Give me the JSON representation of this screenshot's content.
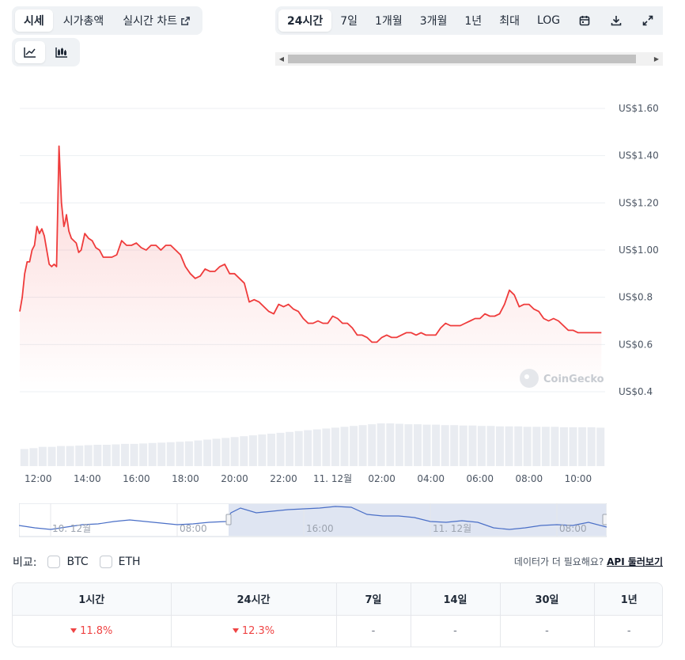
{
  "tabs": [
    {
      "label": "시세",
      "active": true
    },
    {
      "label": "시가총액",
      "active": false
    },
    {
      "label": "실시간 차트",
      "active": false,
      "external": true
    }
  ],
  "chart_types": [
    {
      "icon": "line-chart-icon",
      "active": true
    },
    {
      "icon": "candlestick-icon",
      "active": false
    }
  ],
  "ranges": [
    {
      "label": "24시간",
      "active": true
    },
    {
      "label": "7일",
      "active": false
    },
    {
      "label": "1개월",
      "active": false
    },
    {
      "label": "3개월",
      "active": false
    },
    {
      "label": "1년",
      "active": false
    },
    {
      "label": "최대",
      "active": false
    },
    {
      "label": "LOG",
      "active": false
    }
  ],
  "range_icons": [
    "calendar-icon",
    "download-icon",
    "expand-icon"
  ],
  "watermark": "CoinGecko",
  "chart_data": {
    "type": "line",
    "title": "",
    "xlabel": "",
    "ylabel": "",
    "ylim": [
      0.4,
      1.6
    ],
    "y_ticks": [
      "US$0.4",
      "US$0.6",
      "US$0.8",
      "US$1.00",
      "US$1.20",
      "US$1.40",
      "US$1.60"
    ],
    "y_tick_values": [
      0.4,
      0.6,
      0.8,
      1.0,
      1.2,
      1.4,
      1.6
    ],
    "x_ticks": [
      "12:00",
      "14:00",
      "16:00",
      "18:00",
      "20:00",
      "22:00",
      "11. 12월",
      "02:00",
      "04:00",
      "06:00",
      "08:00",
      "10:00"
    ],
    "x_tick_hours": [
      0,
      2,
      4,
      6,
      8,
      10,
      12,
      14,
      16,
      18,
      20,
      22
    ],
    "xlim_hours": [
      -0.75,
      23.1
    ],
    "line_color": "#ef3b3b",
    "series": [
      {
        "x_hours": [
          -0.75,
          -0.65,
          -0.55,
          -0.45,
          -0.35,
          -0.25,
          -0.15,
          -0.05,
          0.05,
          0.15,
          0.25,
          0.35,
          0.45,
          0.55,
          0.65,
          0.75,
          0.85,
          0.95,
          1.05,
          1.1,
          1.15,
          1.25,
          1.35,
          1.45,
          1.55,
          1.65,
          1.75,
          1.9,
          2.05,
          2.2,
          2.35,
          2.5,
          2.65,
          2.8,
          3.0,
          3.2,
          3.4,
          3.6,
          3.8,
          4.0,
          4.2,
          4.4,
          4.6,
          4.8,
          5.0,
          5.2,
          5.4,
          5.6,
          5.8,
          6.0,
          6.2,
          6.4,
          6.6,
          6.8,
          7.0,
          7.2,
          7.4,
          7.6,
          7.8,
          8.0,
          8.2,
          8.4,
          8.6,
          8.8,
          9.0,
          9.2,
          9.4,
          9.6,
          9.8,
          10.0,
          10.2,
          10.4,
          10.6,
          10.8,
          11.0,
          11.2,
          11.4,
          11.6,
          11.8,
          12.0,
          12.2,
          12.4,
          12.6,
          12.8,
          13.0,
          13.2,
          13.4,
          13.6,
          13.8,
          14.0,
          14.2,
          14.4,
          14.6,
          14.8,
          15.0,
          15.2,
          15.4,
          15.6,
          15.8,
          16.0,
          16.2,
          16.4,
          16.6,
          16.8,
          17.0,
          17.2,
          17.4,
          17.6,
          17.8,
          18.0,
          18.2,
          18.4,
          18.6,
          18.8,
          19.0,
          19.2,
          19.4,
          19.6,
          19.8,
          20.0,
          20.2,
          20.4,
          20.6,
          20.8,
          21.0,
          21.2,
          21.4,
          21.6,
          21.8,
          22.0,
          22.2,
          22.4,
          22.6,
          22.8,
          22.95
        ],
        "values": [
          0.74,
          0.8,
          0.9,
          0.95,
          0.95,
          1.0,
          1.02,
          1.1,
          1.07,
          1.09,
          1.06,
          1.0,
          0.94,
          0.93,
          0.94,
          0.93,
          1.44,
          1.2,
          1.1,
          1.12,
          1.15,
          1.08,
          1.05,
          1.04,
          1.03,
          0.99,
          1.0,
          1.07,
          1.05,
          1.04,
          1.01,
          1.0,
          0.97,
          0.97,
          0.97,
          0.98,
          1.04,
          1.02,
          1.02,
          1.03,
          1.01,
          1.0,
          1.02,
          1.02,
          1.0,
          1.02,
          1.02,
          1.0,
          0.98,
          0.93,
          0.9,
          0.88,
          0.89,
          0.92,
          0.91,
          0.91,
          0.93,
          0.94,
          0.9,
          0.9,
          0.88,
          0.86,
          0.78,
          0.79,
          0.78,
          0.76,
          0.74,
          0.73,
          0.77,
          0.76,
          0.77,
          0.75,
          0.74,
          0.71,
          0.69,
          0.69,
          0.7,
          0.69,
          0.69,
          0.72,
          0.71,
          0.69,
          0.69,
          0.67,
          0.64,
          0.64,
          0.63,
          0.61,
          0.61,
          0.63,
          0.64,
          0.63,
          0.63,
          0.64,
          0.65,
          0.65,
          0.64,
          0.65,
          0.64,
          0.64,
          0.64,
          0.67,
          0.69,
          0.68,
          0.68,
          0.68,
          0.69,
          0.7,
          0.71,
          0.71,
          0.73,
          0.72,
          0.72,
          0.73,
          0.77,
          0.83,
          0.81,
          0.76,
          0.77,
          0.77,
          0.75,
          0.74,
          0.71,
          0.7,
          0.71,
          0.7,
          0.68,
          0.66,
          0.66,
          0.65,
          0.65,
          0.65,
          0.65,
          0.65,
          0.65
        ]
      }
    ],
    "volume_relative": [
      0.4,
      0.42,
      0.45,
      0.45,
      0.47,
      0.47,
      0.48,
      0.49,
      0.5,
      0.5,
      0.51,
      0.52,
      0.52,
      0.53,
      0.54,
      0.55,
      0.56,
      0.57,
      0.58,
      0.6,
      0.62,
      0.64,
      0.66,
      0.68,
      0.7,
      0.72,
      0.74,
      0.76,
      0.78,
      0.8,
      0.82,
      0.84,
      0.86,
      0.88,
      0.9,
      0.92,
      0.94,
      0.96,
      0.98,
      1.0,
      1.0,
      0.99,
      0.98,
      0.98,
      0.97,
      0.97,
      0.96,
      0.96,
      0.95,
      0.95,
      0.94,
      0.94,
      0.93,
      0.93,
      0.93,
      0.92,
      0.92,
      0.92,
      0.92,
      0.91,
      0.91,
      0.91,
      0.91,
      0.9
    ]
  },
  "navigator": {
    "labels": [
      "10. 12월",
      "08:00",
      "16:00",
      "11. 12월",
      "08:00"
    ]
  },
  "compare": {
    "label": "비교:",
    "options": [
      "BTC",
      "ETH"
    ]
  },
  "need_more": {
    "text": "데이터가 더 필요해요?",
    "link": "API 둘러보기"
  },
  "performance": {
    "headers": [
      "1시간",
      "24시간",
      "7일",
      "14일",
      "30일",
      "1년"
    ],
    "values": [
      "11.8%",
      "12.3%",
      "-",
      "-",
      "-",
      "-"
    ],
    "down": [
      true,
      true,
      false,
      false,
      false,
      false
    ]
  }
}
